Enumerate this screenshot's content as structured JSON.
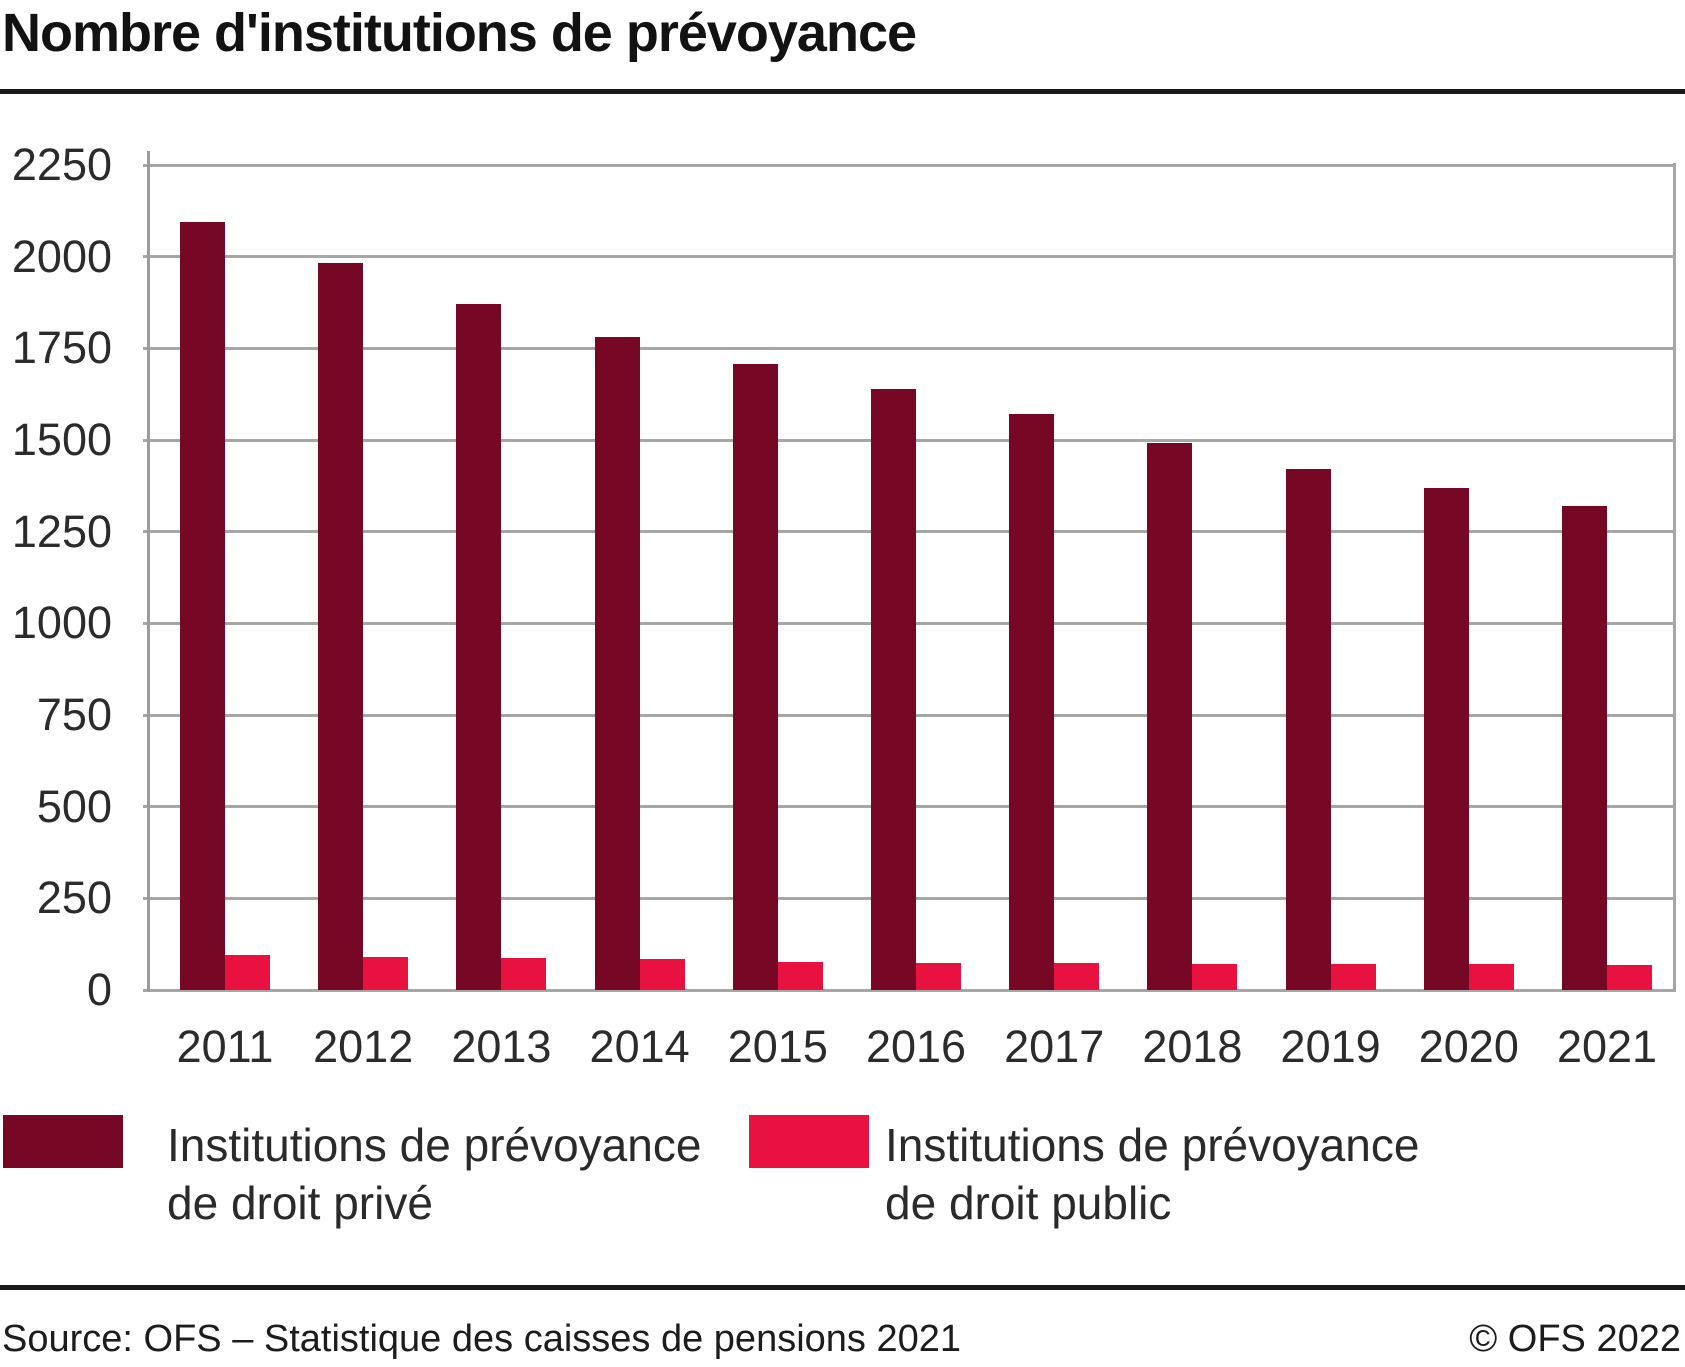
{
  "title": "Nombre d'institutions de prévoyance",
  "footer": {
    "source": "Source: OFS – Statistique des caisses de pensions 2021",
    "copyright": "© OFS 2022"
  },
  "colors": {
    "private": "#760825",
    "public": "#E8113F",
    "grid": "#a6a6a6",
    "axis": "#9c9c9c",
    "rule": "#1a1a1a",
    "text": "#2b2b2b"
  },
  "legend": {
    "items": [
      {
        "name": "Institutions de prévoyance de droit privé",
        "lines": [
          "Institutions de prévoyance",
          "de droit privé"
        ],
        "color": "#760825"
      },
      {
        "name": "Institutions de prévoyance de droit public",
        "lines": [
          "Institutions de prévoyance",
          "de droit public"
        ],
        "color": "#E8113F"
      }
    ]
  },
  "chart_data": {
    "type": "bar",
    "title": "Nombre d'institutions de prévoyance",
    "categories": [
      "2011",
      "2012",
      "2013",
      "2014",
      "2015",
      "2016",
      "2017",
      "2018",
      "2019",
      "2020",
      "2021"
    ],
    "series": [
      {
        "name": "Institutions de prévoyance de droit privé",
        "color": "#760825",
        "values": [
          2095,
          1984,
          1870,
          1782,
          1706,
          1639,
          1570,
          1492,
          1421,
          1368,
          1321
        ]
      },
      {
        "name": "Institutions de prévoyance de droit public",
        "color": "#E8113F",
        "values": [
          96,
          89,
          87,
          84,
          76,
          74,
          73,
          70,
          70,
          70,
          68
        ]
      }
    ],
    "xlabel": "",
    "ylabel": "",
    "ylim": [
      0,
      2250
    ],
    "ytick_step": 250,
    "grid": "horizontal",
    "legend_position": "bottom"
  }
}
